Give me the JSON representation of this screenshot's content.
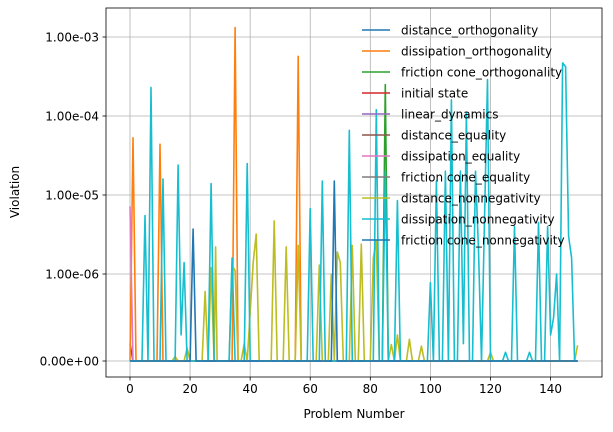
{
  "chart_data": {
    "type": "line",
    "title": "",
    "xlabel": "Problem Number",
    "ylabel": "Violation",
    "xlim": [
      -7.5,
      156.5
    ],
    "x_ticks": [
      0,
      20,
      40,
      60,
      80,
      100,
      120,
      140
    ],
    "y_scale": "symlog",
    "y_linthresh": 1e-06,
    "ylim_min": 0,
    "y_tick_values": [
      0,
      1e-06,
      1e-05,
      0.0001,
      0.001
    ],
    "y_tick_labels": [
      "0.00e+00",
      "1.00e-06",
      "1.00e-05",
      "1.00e-04",
      "1.00e-03"
    ],
    "grid": true,
    "legend_position": "top-right",
    "series": [
      {
        "name": "distance_orthogonality",
        "color": "#1f77b4",
        "points": [
          [
            0,
            2e-07
          ],
          [
            1,
            0
          ],
          [
            149,
            0
          ]
        ]
      },
      {
        "name": "dissipation_orthogonality",
        "color": "#ff7f0e",
        "points": [
          [
            0,
            0
          ],
          [
            1,
            5.3e-05
          ],
          [
            2,
            0
          ],
          [
            9,
            0
          ],
          [
            10,
            4.4e-05
          ],
          [
            11,
            0
          ],
          [
            34,
            0
          ],
          [
            35,
            0.00132
          ],
          [
            36,
            0
          ],
          [
            55,
            0
          ],
          [
            56,
            0.00057
          ],
          [
            57,
            0
          ],
          [
            149,
            0
          ]
        ]
      },
      {
        "name": "friction cone_orthogonality",
        "color": "#2ca02c",
        "points": [
          [
            0,
            0
          ],
          [
            84,
            0
          ],
          [
            85,
            0.00025
          ],
          [
            86,
            0
          ],
          [
            149,
            0
          ]
        ]
      },
      {
        "name": "initial state",
        "color": "#d62728",
        "points": [
          [
            0,
            0
          ],
          [
            149,
            0
          ]
        ]
      },
      {
        "name": "linear_dynamics",
        "color": "#9467bd",
        "points": [
          [
            0,
            0
          ],
          [
            149,
            0
          ]
        ]
      },
      {
        "name": "distance_equality",
        "color": "#8c564b",
        "points": [
          [
            0,
            0
          ],
          [
            149,
            0
          ]
        ]
      },
      {
        "name": "dissipation_equality",
        "color": "#e377c2",
        "points": [
          [
            0,
            7.2e-06
          ],
          [
            1,
            0
          ],
          [
            149,
            0
          ]
        ]
      },
      {
        "name": "friction cone_equality",
        "color": "#7f7f7f",
        "points": [
          [
            0,
            0
          ],
          [
            149,
            0
          ]
        ]
      },
      {
        "name": "distance_nonnegativity",
        "color": "#bcbd22",
        "points": [
          [
            0,
            0
          ],
          [
            14,
            0
          ],
          [
            15,
            5e-08
          ],
          [
            16,
            0
          ],
          [
            18,
            0
          ],
          [
            19,
            1.5e-07
          ],
          [
            20,
            0
          ],
          [
            24,
            0
          ],
          [
            25,
            8e-07
          ],
          [
            26,
            0
          ],
          [
            27,
            1.2e-06
          ],
          [
            28,
            0
          ],
          [
            28.5,
            2.2e-06
          ],
          [
            29,
            0
          ],
          [
            33,
            0
          ],
          [
            34,
            1.3e-06
          ],
          [
            35,
            1.1e-06
          ],
          [
            36,
            0
          ],
          [
            37,
            0
          ],
          [
            38,
            2e-07
          ],
          [
            39,
            0
          ],
          [
            41,
            1.4e-06
          ],
          [
            42,
            3.2e-06
          ],
          [
            43,
            0
          ],
          [
            47,
            0
          ],
          [
            48,
            4.7e-06
          ],
          [
            49,
            0
          ],
          [
            51,
            0
          ],
          [
            52,
            2.2e-06
          ],
          [
            53,
            0
          ],
          [
            55,
            0
          ],
          [
            56,
            2.3e-06
          ],
          [
            57,
            0
          ],
          [
            62,
            0
          ],
          [
            63,
            1.3e-06
          ],
          [
            64,
            0
          ],
          [
            66,
            0
          ],
          [
            67,
            1e-06
          ],
          [
            68,
            0
          ],
          [
            69,
            1.9e-06
          ],
          [
            70,
            1.4e-06
          ],
          [
            71,
            0
          ],
          [
            73,
            0
          ],
          [
            74,
            2.3e-06
          ],
          [
            75,
            0
          ],
          [
            76,
            0
          ],
          [
            77,
            2.4e-06
          ],
          [
            78,
            0
          ],
          [
            80,
            0
          ],
          [
            81,
            1.6e-06
          ],
          [
            82,
            2.6e-06
          ],
          [
            83,
            0
          ],
          [
            86,
            0
          ],
          [
            87,
            1.9e-07
          ],
          [
            88,
            0
          ],
          [
            89,
            3e-07
          ],
          [
            90,
            0
          ],
          [
            92,
            0
          ],
          [
            93,
            2.5e-07
          ],
          [
            94,
            0
          ],
          [
            96,
            0
          ],
          [
            97,
            1.7e-07
          ],
          [
            98,
            0
          ],
          [
            119,
            0
          ],
          [
            120,
            1e-07
          ],
          [
            121,
            0
          ],
          [
            148,
            0
          ],
          [
            149,
            1.8e-07
          ]
        ]
      },
      {
        "name": "dissipation_nonnegativity",
        "color": "#17becf",
        "points": [
          [
            0,
            0
          ],
          [
            4,
            0
          ],
          [
            5,
            5.5e-06
          ],
          [
            6,
            0
          ],
          [
            7,
            0.00023
          ],
          [
            8,
            0
          ],
          [
            10,
            0
          ],
          [
            11,
            1.6e-05
          ],
          [
            12,
            0
          ],
          [
            15,
            0
          ],
          [
            16,
            2.4e-05
          ],
          [
            17,
            3e-07
          ],
          [
            18,
            1.4e-06
          ],
          [
            19,
            0
          ],
          [
            26,
            0
          ],
          [
            27,
            1.4e-05
          ],
          [
            28,
            0
          ],
          [
            33,
            0
          ],
          [
            34,
            1.6e-06
          ],
          [
            35,
            0
          ],
          [
            38,
            0
          ],
          [
            39,
            2.5e-05
          ],
          [
            40,
            0
          ],
          [
            59,
            0
          ],
          [
            60,
            6.7e-06
          ],
          [
            61,
            0
          ],
          [
            63,
            0
          ],
          [
            64,
            1.5e-05
          ],
          [
            65,
            0
          ],
          [
            72,
            0
          ],
          [
            73,
            6.6e-05
          ],
          [
            74,
            0
          ],
          [
            81,
            0
          ],
          [
            82,
            0.00012
          ],
          [
            83,
            0
          ],
          [
            84,
            0
          ],
          [
            85,
            2e-05
          ],
          [
            86,
            0
          ],
          [
            88,
            0
          ],
          [
            89,
            8.5e-06
          ],
          [
            90,
            0
          ],
          [
            99,
            0
          ],
          [
            100,
            9e-07
          ],
          [
            101,
            0
          ],
          [
            102,
            1.5e-05
          ],
          [
            103,
            0
          ],
          [
            104,
            0
          ],
          [
            105,
            2e-05
          ],
          [
            106,
            0
          ],
          [
            107,
            0.00016
          ],
          [
            108,
            0
          ],
          [
            109,
            0
          ],
          [
            110,
            2e-05
          ],
          [
            111,
            2e-07
          ],
          [
            112,
            0.00011
          ],
          [
            113,
            0
          ],
          [
            114,
            0
          ],
          [
            115,
            2e-05
          ],
          [
            116,
            2e-06
          ],
          [
            117,
            0
          ],
          [
            119,
            0.00029
          ],
          [
            120,
            0
          ],
          [
            124,
            0
          ],
          [
            125,
            1e-07
          ],
          [
            126,
            0
          ],
          [
            127,
            0
          ],
          [
            128,
            4e-06
          ],
          [
            129,
            0
          ],
          [
            132,
            0
          ],
          [
            133,
            1e-07
          ],
          [
            134,
            0
          ],
          [
            135,
            0
          ],
          [
            136,
            4.5e-06
          ],
          [
            137,
            0
          ],
          [
            138,
            0
          ],
          [
            139,
            4e-06
          ],
          [
            140,
            3e-07
          ],
          [
            141,
            5e-07
          ],
          [
            142,
            1e-06
          ],
          [
            143,
            0
          ],
          [
            144,
            0.00047
          ],
          [
            145,
            0.00042
          ],
          [
            146,
            3e-06
          ],
          [
            147,
            1.6e-06
          ],
          [
            148,
            0
          ],
          [
            149,
            0
          ]
        ]
      },
      {
        "name": "friction cone_nonnegativity",
        "color": "#1f77b4",
        "points": [
          [
            0,
            0
          ],
          [
            20,
            0
          ],
          [
            21,
            3.7e-06
          ],
          [
            22,
            0
          ],
          [
            67,
            0
          ],
          [
            68,
            1.5e-05
          ],
          [
            69,
            0
          ],
          [
            149,
            0
          ]
        ]
      }
    ]
  }
}
